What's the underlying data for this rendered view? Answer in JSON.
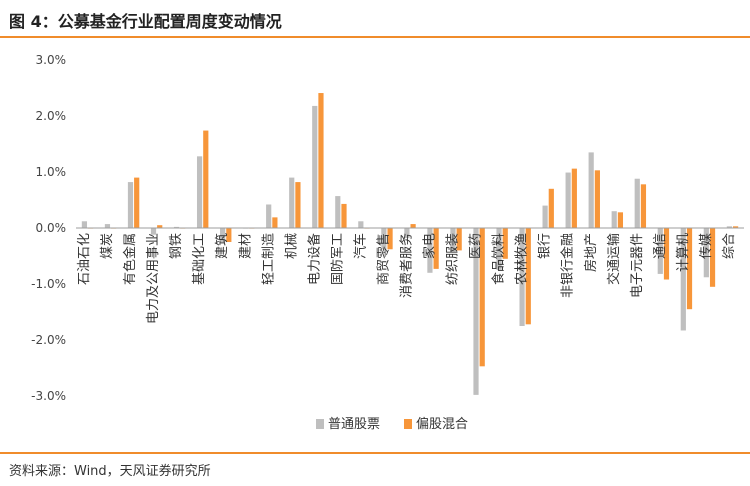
{
  "header": {
    "title": "图 4：公募基金行业配置周度变动情况"
  },
  "footer": {
    "source": "资料来源：Wind，天风证券研究所"
  },
  "colors": {
    "accent": "#f08c2b",
    "series_ordinary": "#bfbfbf",
    "series_hybrid": "#f7963a",
    "zero_line": "#9e9e9e"
  },
  "chart_data": {
    "type": "bar",
    "title": "",
    "xlabel": "",
    "ylabel": "",
    "ylim": [
      -0.03,
      0.03
    ],
    "y_ticks": [
      0.03,
      0.02,
      0.01,
      0.0,
      -0.01,
      -0.02,
      -0.03
    ],
    "y_tick_labels": [
      "3.0%",
      "2.0%",
      "1.0%",
      "0.0%",
      "-1.0%",
      "-2.0%",
      "-3.0%"
    ],
    "grid": false,
    "legend_position": "bottom",
    "categories": [
      "石油石化",
      "煤炭",
      "有色金属",
      "电力及公用事业",
      "钢铁",
      "基础化工",
      "建筑",
      "建材",
      "轻工制造",
      "机械",
      "电力设备",
      "国防军工",
      "汽车",
      "商贸零售",
      "消费者服务",
      "家电",
      "纺织服装",
      "医药",
      "食品饮料",
      "农林牧渔",
      "银行",
      "非银行金融",
      "房地产",
      "交通运输",
      "电子元器件",
      "通信",
      "计算机",
      "传媒",
      "综合"
    ],
    "series": [
      {
        "name": "普通股票",
        "values": [
          0.0012,
          0.0007,
          0.0082,
          -0.0012,
          0.0002,
          0.0128,
          -0.0025,
          -0.0001,
          0.0042,
          0.009,
          0.0218,
          0.0057,
          0.0012,
          -0.0038,
          -0.0018,
          -0.008,
          -0.0042,
          -0.0298,
          -0.0075,
          -0.0175,
          0.004,
          0.0099,
          0.0135,
          0.003,
          0.0088,
          -0.0082,
          -0.0183,
          -0.0088,
          0.0003
        ]
      },
      {
        "name": "偏股混合",
        "values": [
          0.0,
          0.0,
          0.009,
          0.0005,
          0.0,
          0.0174,
          -0.0025,
          0.0,
          0.0019,
          0.0082,
          0.0241,
          0.0043,
          0.0,
          -0.0038,
          0.0007,
          -0.0073,
          -0.004,
          -0.0247,
          -0.0055,
          -0.0172,
          0.007,
          0.0106,
          0.0103,
          0.0028,
          0.0078,
          -0.0092,
          -0.0145,
          -0.0105,
          0.0003
        ]
      }
    ]
  }
}
